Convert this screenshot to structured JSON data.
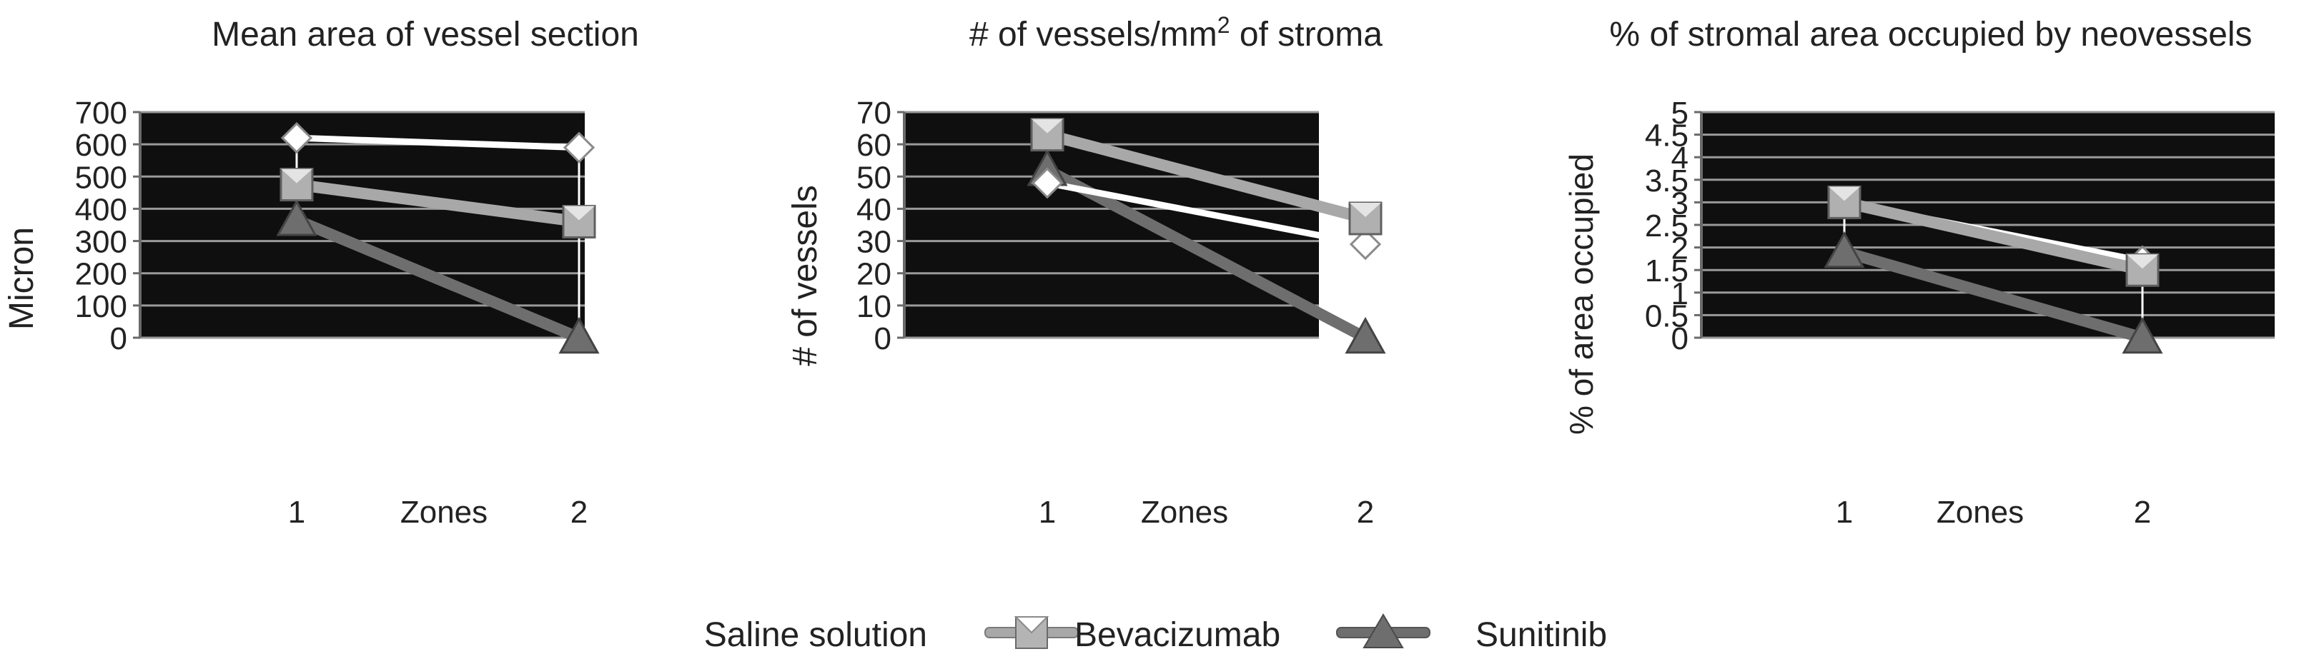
{
  "colors": {
    "background": "#ffffff",
    "plot_background": "#0f0f0f",
    "grid": "#9a9a9a",
    "axis": "#6a6a6a",
    "text": "#222222"
  },
  "legend": {
    "placement": "bottom-center",
    "items": [
      {
        "label": "Saline solution",
        "color": "#ffffff",
        "marker": "diamond"
      },
      {
        "label": "Bevacizumab",
        "color": "#a8a8a8",
        "marker": "square"
      },
      {
        "label": "Sunitinib",
        "color": "#6e6e6e",
        "marker": "triangle"
      }
    ]
  },
  "chart_data": [
    {
      "type": "line",
      "title": "Mean area of vessel section",
      "xlabel": "Zones",
      "ylabel": "Micron",
      "x": [
        1,
        2
      ],
      "xticks": [
        "1",
        "2"
      ],
      "ylim": [
        0,
        700
      ],
      "yticks": [
        "0",
        "100",
        "200",
        "300",
        "400",
        "500",
        "600",
        "700"
      ],
      "grid": true,
      "series": [
        {
          "name": "Saline solution",
          "values": [
            620,
            590
          ]
        },
        {
          "name": "Bevacizumab",
          "values": [
            475,
            360
          ]
        },
        {
          "name": "Sunitinib",
          "values": [
            365,
            0
          ]
        }
      ]
    },
    {
      "type": "line",
      "title": "# of vessels/mm",
      "title_sup": "2",
      "title_tail": " of stroma",
      "xlabel": "Zones",
      "ylabel": "# of vessels",
      "x": [
        1,
        2
      ],
      "xticks": [
        "1",
        "2"
      ],
      "ylim": [
        0,
        70
      ],
      "yticks": [
        "0",
        "10",
        "20",
        "30",
        "40",
        "50",
        "60",
        "70"
      ],
      "grid": true,
      "series": [
        {
          "name": "Saline solution",
          "values": [
            48,
            29
          ]
        },
        {
          "name": "Bevacizumab",
          "values": [
            63,
            37
          ]
        },
        {
          "name": "Sunitinib",
          "values": [
            52,
            0
          ]
        }
      ]
    },
    {
      "type": "line",
      "title": "% of stromal area occupied by neovessels",
      "xlabel": "Zones",
      "ylabel": "% of area occupied",
      "x": [
        1,
        2
      ],
      "xticks": [
        "1",
        "2"
      ],
      "ylim": [
        0,
        5
      ],
      "yticks": [
        "0",
        "0.5",
        "1",
        "1.5",
        "2",
        "2.5",
        "3",
        "3.5",
        "4",
        "4.5",
        "5"
      ],
      "grid": true,
      "series": [
        {
          "name": "Saline solution",
          "values": [
            3.0,
            1.7
          ]
        },
        {
          "name": "Bevacizumab",
          "values": [
            3.0,
            1.5
          ]
        },
        {
          "name": "Sunitinib",
          "values": [
            1.9,
            0
          ]
        }
      ]
    }
  ]
}
